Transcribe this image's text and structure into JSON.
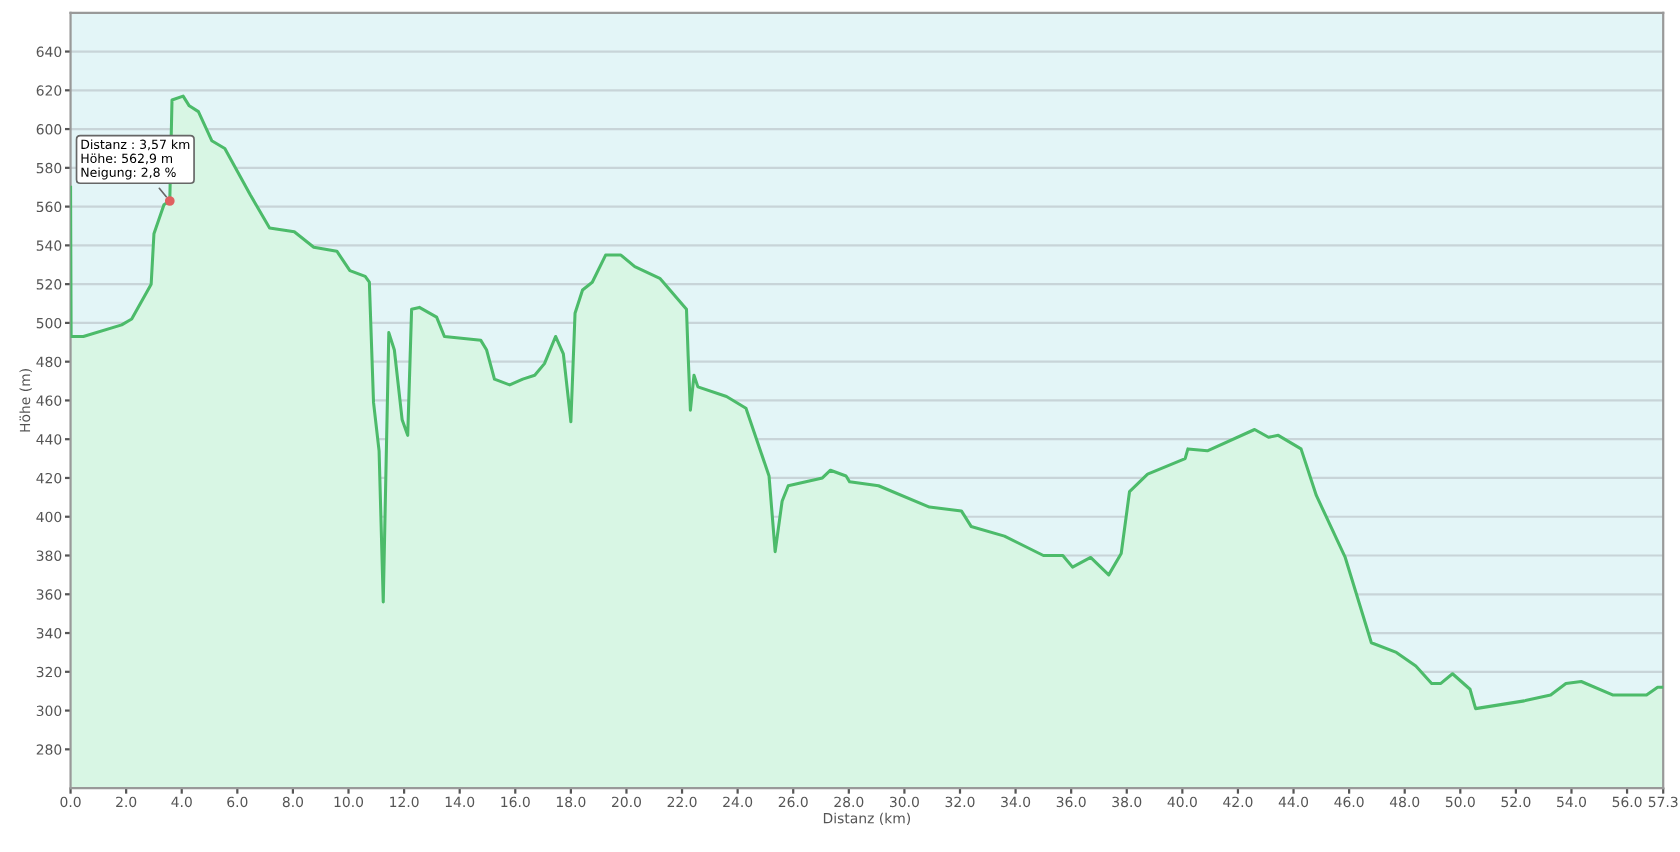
{
  "chart_data": {
    "type": "area",
    "xlabel": "Distanz (km)",
    "ylabel": "Höhe (m)",
    "x": [
      0,
      0.02,
      0.46,
      1.84,
      2.2,
      2.9,
      3.0,
      3.36,
      3.57,
      3.65,
      4.05,
      4.27,
      4.6,
      5.08,
      5.55,
      6.47,
      7.16,
      8.05,
      8.75,
      9.58,
      10.05,
      10.6,
      10.75,
      10.9,
      11.1,
      11.25,
      11.45,
      11.65,
      11.93,
      12.13,
      12.27,
      12.55,
      13.17,
      13.45,
      14.76,
      14.97,
      15.25,
      15.8,
      16.27,
      16.7,
      17.05,
      17.45,
      17.73,
      18.0,
      18.15,
      18.42,
      18.77,
      19.25,
      19.8,
      20.3,
      21.2,
      22.16,
      22.22,
      22.3,
      22.43,
      22.57,
      23.6,
      24.3,
      25.13,
      25.35,
      25.6,
      25.82,
      27.05,
      27.34,
      27.9,
      28.03,
      29.07,
      30.9,
      32.05,
      32.4,
      33.6,
      35.0,
      35.7,
      36.05,
      36.7,
      37.35,
      37.8,
      38.1,
      38.75,
      40.1,
      40.2,
      40.9,
      42.6,
      43.1,
      43.45,
      44.27,
      44.82,
      45.86,
      46.8,
      47.7,
      48.4,
      48.97,
      49.3,
      49.72,
      50.35,
      50.55,
      52.3,
      53.25,
      53.8,
      54.35,
      55.5,
      56.7,
      57.1,
      57.3
    ],
    "series": [
      {
        "color": "#4cbb6a",
        "values": [
          570,
          493,
          493,
          499,
          502,
          520,
          546,
          561,
          563,
          615,
          617,
          612,
          609,
          594,
          590,
          566,
          549,
          547,
          539,
          537,
          527,
          524,
          521,
          459,
          434,
          356,
          495,
          486,
          450,
          442,
          507,
          508,
          503,
          493,
          491,
          486,
          471,
          468,
          471,
          473,
          479,
          493,
          484,
          449,
          505,
          517,
          521,
          535,
          535,
          529,
          523,
          507,
          483,
          455,
          473,
          467,
          462,
          456,
          421,
          382,
          408,
          416,
          420,
          424,
          421,
          418,
          416,
          405,
          403,
          395,
          390,
          380,
          380,
          374,
          379,
          370,
          381,
          413,
          422,
          430,
          435,
          434,
          445,
          441,
          442,
          435,
          411,
          379,
          335,
          330,
          323,
          314,
          314,
          319,
          311,
          301,
          305,
          308,
          314,
          315,
          308,
          308,
          312,
          312
        ]
      }
    ],
    "xlim": [
      0,
      57.3
    ],
    "ylim": [
      260,
      660
    ],
    "xticks": [
      {
        "value": 0,
        "label": "0.0"
      },
      {
        "value": 2,
        "label": "2.0"
      },
      {
        "value": 4,
        "label": "4.0"
      },
      {
        "value": 6,
        "label": "6.0"
      },
      {
        "value": 8,
        "label": "8.0"
      },
      {
        "value": 10,
        "label": "10.0"
      },
      {
        "value": 12,
        "label": "12.0"
      },
      {
        "value": 14,
        "label": "14.0"
      },
      {
        "value": 16,
        "label": "16.0"
      },
      {
        "value": 18,
        "label": "18.0"
      },
      {
        "value": 20,
        "label": "20.0"
      },
      {
        "value": 22,
        "label": "22.0"
      },
      {
        "value": 24,
        "label": "24.0"
      },
      {
        "value": 26,
        "label": "26.0"
      },
      {
        "value": 28,
        "label": "28.0"
      },
      {
        "value": 30,
        "label": "30.0"
      },
      {
        "value": 32,
        "label": "32.0"
      },
      {
        "value": 34,
        "label": "34.0"
      },
      {
        "value": 36,
        "label": "36.0"
      },
      {
        "value": 38,
        "label": "38.0"
      },
      {
        "value": 40,
        "label": "40.0"
      },
      {
        "value": 42,
        "label": "42.0"
      },
      {
        "value": 44,
        "label": "44.0"
      },
      {
        "value": 46,
        "label": "46.0"
      },
      {
        "value": 48,
        "label": "48.0"
      },
      {
        "value": 50,
        "label": "50.0"
      },
      {
        "value": 52,
        "label": "52.0"
      },
      {
        "value": 54,
        "label": "54.0"
      },
      {
        "value": 56,
        "label": "56.0"
      },
      57.3
    ],
    "yticks": [
      280,
      300,
      320,
      340,
      360,
      380,
      400,
      420,
      440,
      460,
      480,
      500,
      520,
      540,
      560,
      580,
      600,
      620,
      640
    ],
    "grid": "y",
    "marker": "none",
    "line_style": "solid",
    "annotations": [
      {
        "text": "Distanz : 3,57 km\nHöhe: 562,9 m\nNeigung: 2,8 %",
        "x": 3.57,
        "y": 562.9
      }
    ]
  }
}
